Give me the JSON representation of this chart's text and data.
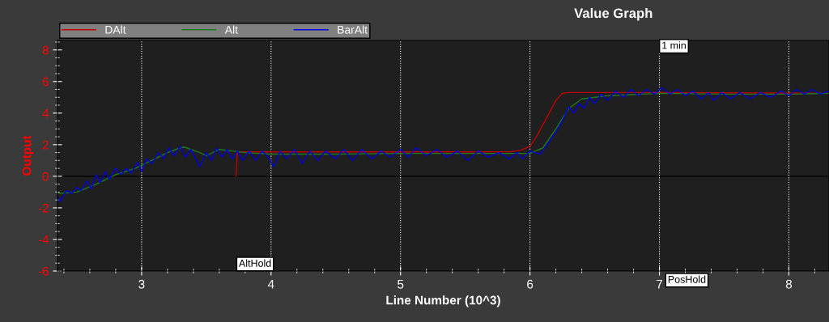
{
  "chart_data": {
    "type": "line",
    "title": "Value Graph",
    "xlabel": "Line Number (10^3)",
    "ylabel": "Output",
    "xlim": [
      2.35,
      8.31
    ],
    "ylim": [
      -6,
      8.6
    ],
    "xticks": [
      3,
      4,
      5,
      6,
      7,
      8
    ],
    "yticks": [
      -6,
      -4,
      -2,
      0,
      2,
      4,
      6,
      8
    ],
    "grid": "x",
    "legend": "top left",
    "marker": "none",
    "line_style": "solid",
    "ref_lines": [
      {
        "axis": "y",
        "value": 0,
        "color": "#000000"
      }
    ],
    "annotations": [
      "1 min",
      "AltHold",
      "PosHold"
    ],
    "series": [
      {
        "name": "DAlt",
        "color": "#c00000",
        "x": [
          3.73,
          3.74,
          3.9,
          4.5,
          5.0,
          5.5,
          5.85,
          5.93,
          6.0,
          6.05,
          6.2,
          6.25,
          6.3,
          7.0,
          7.5,
          8.0,
          8.31
        ],
        "values": [
          0,
          1.54,
          1.54,
          1.54,
          1.54,
          1.54,
          1.55,
          1.65,
          1.9,
          2.5,
          4.8,
          5.25,
          5.3,
          5.3,
          5.28,
          5.27,
          5.25
        ]
      },
      {
        "name": "Alt",
        "color": "#1f7a1f",
        "x": [
          2.35,
          2.5,
          2.65,
          2.8,
          2.95,
          3.05,
          3.2,
          3.3,
          3.33,
          3.45,
          3.5,
          3.6,
          3.7,
          3.8,
          4.0,
          4.5,
          5.0,
          5.5,
          6.0,
          6.1,
          6.2,
          6.3,
          6.4,
          6.6,
          7.0,
          7.5,
          8.0,
          8.31
        ],
        "values": [
          -1.1,
          -1.0,
          -0.5,
          0.1,
          0.5,
          0.9,
          1.5,
          1.8,
          1.85,
          1.5,
          1.3,
          1.7,
          1.6,
          1.5,
          1.4,
          1.4,
          1.45,
          1.45,
          1.45,
          1.8,
          3.0,
          4.3,
          4.9,
          5.1,
          5.25,
          5.2,
          5.2,
          5.25
        ]
      },
      {
        "name": "BarAlt",
        "color": "#0000e0",
        "x": [
          2.35,
          2.37,
          2.42,
          2.46,
          2.5,
          2.53,
          2.58,
          2.61,
          2.65,
          2.68,
          2.72,
          2.75,
          2.8,
          2.84,
          2.88,
          2.92,
          2.97,
          3.0,
          3.04,
          3.08,
          3.13,
          3.17,
          3.21,
          3.25,
          3.3,
          3.34,
          3.38,
          3.42,
          3.45,
          3.5,
          3.54,
          3.58,
          3.62,
          3.66,
          3.7,
          3.74,
          3.78,
          3.83,
          3.88,
          3.93,
          3.98,
          4.02,
          4.07,
          4.12,
          4.18,
          4.24,
          4.3,
          4.36,
          4.42,
          4.5,
          4.56,
          4.63,
          4.7,
          4.78,
          4.85,
          4.92,
          5.0,
          5.06,
          5.12,
          5.2,
          5.28,
          5.36,
          5.44,
          5.52,
          5.6,
          5.68,
          5.76,
          5.84,
          5.9,
          5.94,
          6.0,
          6.08,
          6.15,
          6.2,
          6.25,
          6.3,
          6.34,
          6.38,
          6.42,
          6.46,
          6.5,
          6.55,
          6.6,
          6.66,
          6.72,
          6.78,
          6.84,
          6.9,
          6.96,
          7.02,
          7.08,
          7.14,
          7.2,
          7.26,
          7.32,
          7.38,
          7.42,
          7.48,
          7.55,
          7.62,
          7.7,
          7.78,
          7.86,
          7.94,
          8.0,
          8.06,
          8.12,
          8.18,
          8.24,
          8.31
        ],
        "values": [
          -1.3,
          -1.6,
          -0.9,
          -1.1,
          -0.7,
          -0.9,
          -0.3,
          -0.8,
          0.1,
          -0.4,
          0.3,
          -0.2,
          0.5,
          0.1,
          0.5,
          0.2,
          0.9,
          0.3,
          1.1,
          0.8,
          1.5,
          1.1,
          1.8,
          1.3,
          1.9,
          1.2,
          1.7,
          1.1,
          0.6,
          1.5,
          1.0,
          1.8,
          1.2,
          1.7,
          1.1,
          1.6,
          1.0,
          1.6,
          1.0,
          1.6,
          1.2,
          0.6,
          1.6,
          1.1,
          1.7,
          0.8,
          1.6,
          1.0,
          1.6,
          1.1,
          1.7,
          1.0,
          1.7,
          1.1,
          1.6,
          1.2,
          1.7,
          1.2,
          1.8,
          1.3,
          1.7,
          1.2,
          1.6,
          1.0,
          1.6,
          1.2,
          1.5,
          1.1,
          1.5,
          1.1,
          1.6,
          1.4,
          2.2,
          2.8,
          3.5,
          4.4,
          4.0,
          4.6,
          4.3,
          5.0,
          4.6,
          5.2,
          4.8,
          5.4,
          5.0,
          5.5,
          5.1,
          5.5,
          5.2,
          5.6,
          5.2,
          5.5,
          5.1,
          5.4,
          4.9,
          5.3,
          4.8,
          5.3,
          4.9,
          5.3,
          4.9,
          5.3,
          5.0,
          5.4,
          5.1,
          5.5,
          5.2,
          5.5,
          5.2,
          5.4
        ]
      }
    ]
  }
}
